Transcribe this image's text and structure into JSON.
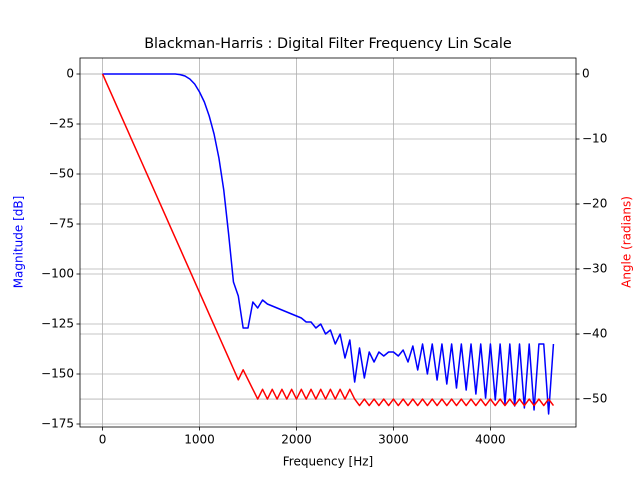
{
  "chart_data": {
    "type": "line",
    "title": "Blackman-Harris : Digital Filter Frequency Lin Scale",
    "xlabel": "Frequency [Hz]",
    "ylabel": "Magnitude [dB]",
    "y2label": "Angle (radians)",
    "grid": true,
    "x": [
      0,
      50,
      100,
      150,
      200,
      250,
      300,
      350,
      400,
      450,
      500,
      550,
      600,
      650,
      700,
      750,
      800,
      850,
      900,
      950,
      1000,
      1050,
      1100,
      1150,
      1200,
      1250,
      1300,
      1350,
      1400,
      1450,
      1500,
      1550,
      1600,
      1650,
      1700,
      1750,
      1800,
      1850,
      1900,
      1950,
      2000,
      2050,
      2100,
      2150,
      2200,
      2250,
      2300,
      2350,
      2400,
      2450,
      2500,
      2550,
      2600,
      2650,
      2700,
      2750,
      2800,
      2850,
      2900,
      2950,
      3000,
      3050,
      3100,
      3150,
      3200,
      3250,
      3300,
      3350,
      3400,
      3450,
      3500,
      3550,
      3600,
      3650,
      3700,
      3750,
      3800,
      3850,
      3900,
      3950,
      4000,
      4050,
      4100,
      4150,
      4200,
      4250,
      4300,
      4350,
      4400,
      4450,
      4500,
      4550,
      4600,
      4650
    ],
    "series": [
      {
        "name": "Magnitude",
        "color": "#0000ff",
        "axis": "y",
        "values": [
          0,
          0,
          0,
          0,
          0,
          0,
          0,
          0,
          0,
          0,
          0,
          0,
          0,
          0,
          0,
          0,
          -0.3,
          -1,
          -2.5,
          -5,
          -9,
          -14,
          -21,
          -30,
          -42,
          -58,
          -80,
          -104,
          -111,
          -127,
          -127,
          -114,
          -117,
          -113,
          -115,
          -116,
          -117,
          -118,
          -119,
          -120,
          -121,
          -122,
          -124,
          -124,
          -127,
          -125,
          -130,
          -128,
          -135,
          -130,
          -142,
          -133,
          -154,
          -137,
          -152,
          -139,
          -144,
          -139,
          -141,
          -139,
          -139,
          -141,
          -138,
          -144,
          -136,
          -148,
          -135,
          -150,
          -135,
          -153,
          -135,
          -155,
          -135,
          -157,
          -135,
          -158,
          -135,
          -160,
          -135,
          -162,
          -135,
          -163,
          -135,
          -165,
          -135,
          -166,
          -135,
          -167,
          -135,
          -168,
          -135,
          -135,
          -170,
          -135
        ]
      },
      {
        "name": "Angle",
        "color": "#ff0000",
        "axis": "y2",
        "values": [
          0,
          -1.68,
          -3.36,
          -5.04,
          -6.72,
          -8.4,
          -10.08,
          -11.76,
          -13.44,
          -15.12,
          -16.8,
          -18.48,
          -20.16,
          -21.84,
          -23.52,
          -25.2,
          -26.88,
          -28.56,
          -30.24,
          -31.92,
          -33.6,
          -35.28,
          -36.96,
          -38.64,
          -40.32,
          -42,
          -43.68,
          -45.36,
          -47.04,
          -45.5,
          -47,
          -48.5,
          -50,
          -48.5,
          -50,
          -48.5,
          -50,
          -48.5,
          -50,
          -48.5,
          -50,
          -48.5,
          -50,
          -48.5,
          -50,
          -48.5,
          -50,
          -48.5,
          -50,
          -48.5,
          -50,
          -48.5,
          -50,
          -51,
          -50,
          -51,
          -50,
          -51,
          -50,
          -51,
          -50,
          -51,
          -50,
          -51,
          -50,
          -51,
          -50,
          -51,
          -50,
          -51,
          -50,
          -51,
          -50,
          -51,
          -50,
          -51,
          -50,
          -51,
          -50,
          -51,
          -50,
          -51,
          -50,
          -51,
          -50,
          -51,
          -50,
          -51,
          -50,
          -51,
          -50,
          -51,
          -50,
          -51
        ]
      }
    ],
    "xlim": [
      -232.5,
      4882.5
    ],
    "xticks": [
      0,
      1000,
      2000,
      3000,
      4000
    ],
    "ylim": [
      -176.5,
      8
    ],
    "yticks": [
      0,
      {
        "value": -25,
        "label": "−25"
      },
      {
        "value": -50,
        "label": "−50"
      },
      {
        "value": -75,
        "label": "−75"
      },
      {
        "value": -100,
        "label": "−100"
      },
      {
        "value": -125,
        "label": "−125"
      },
      {
        "value": -150,
        "label": "−150"
      },
      {
        "value": -175,
        "label": "−175"
      }
    ],
    "y2lim": [
      -54.3,
      2.46
    ],
    "y2ticks": [
      0,
      {
        "value": -10,
        "label": "−10"
      },
      {
        "value": -20,
        "label": "−20"
      },
      {
        "value": -30,
        "label": "−30"
      },
      {
        "value": -40,
        "label": "−40"
      },
      {
        "value": -50,
        "label": "−50"
      }
    ]
  }
}
